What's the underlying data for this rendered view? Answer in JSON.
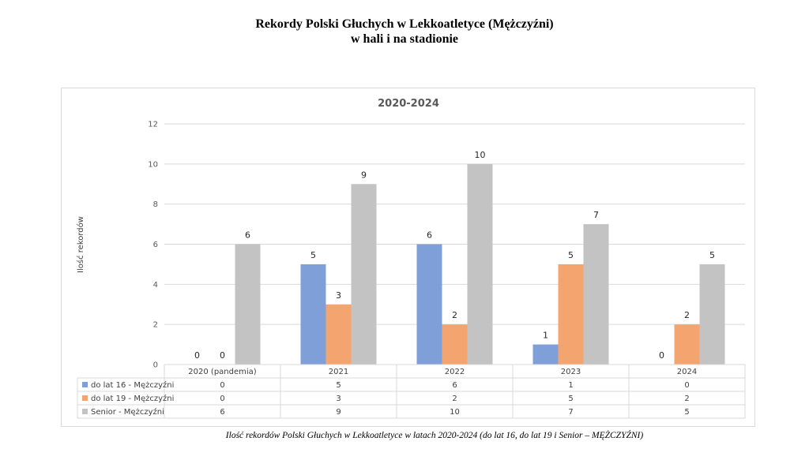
{
  "page": {
    "title_line1": "Rekordy Polski Głuchych w Lekkoatletyce (Mężczyźni)",
    "title_line2": "w hali i na stadionie",
    "caption": "Ilość rekordów Polski Głuchych w Lekkoatletyce w latach 2020-2024 (do lat 16, do lat 19 i Senior – MĘŻCZYŹNI)"
  },
  "chart_data": {
    "type": "bar",
    "title": "2020-2024",
    "xlabel": "",
    "ylabel": "Ilość  rekordów",
    "ylim": [
      0,
      12
    ],
    "yticks": [
      0,
      2,
      4,
      6,
      8,
      10,
      12
    ],
    "grid": true,
    "legend": "data-table",
    "categories": [
      "2020 (pandemia)",
      "2021",
      "2022",
      "2023",
      "2024"
    ],
    "series": [
      {
        "name": "do lat 16 - Mężczyźni",
        "color": "#7f9fd8",
        "values": [
          0,
          5,
          6,
          1,
          0
        ]
      },
      {
        "name": "do lat 19 - Mężczyźni",
        "color": "#f3a46f",
        "values": [
          0,
          3,
          2,
          5,
          2
        ]
      },
      {
        "name": "Senior - Mężczyźni",
        "color": "#c3c3c3",
        "values": [
          6,
          9,
          10,
          7,
          5
        ]
      }
    ]
  }
}
